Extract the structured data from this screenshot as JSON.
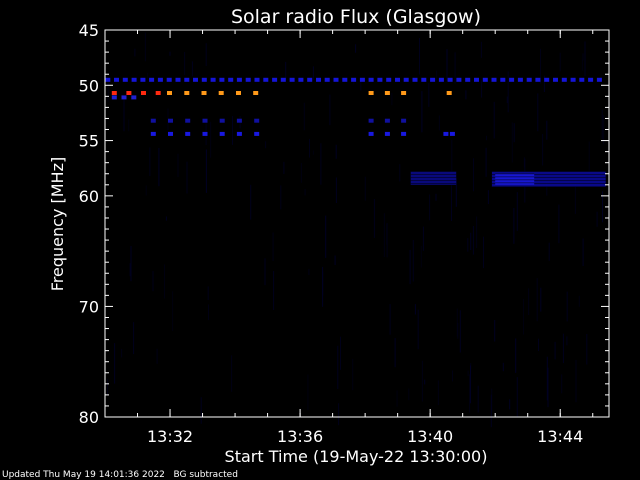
{
  "chart_data": {
    "type": "heatmap",
    "title": "Solar radio Flux (Glasgow)",
    "xlabel": "Start Time (19-May-22 13:30:00)",
    "ylabel": "Frequency [MHz]",
    "x_unit": "minutes after 13:30",
    "xlim": [
      0.0,
      15.5
    ],
    "ylim": [
      45,
      80
    ],
    "y_inverted": true,
    "x_ticks": [
      {
        "value": 2,
        "label": "13:32"
      },
      {
        "value": 6,
        "label": "13:36"
      },
      {
        "value": 10,
        "label": "13:40"
      },
      {
        "value": 14,
        "label": "13:44"
      }
    ],
    "y_ticks": [
      {
        "value": 45,
        "label": "45"
      },
      {
        "value": 50,
        "label": "50"
      },
      {
        "value": 55,
        "label": "55"
      },
      {
        "value": 60,
        "label": "60"
      },
      {
        "value": 70,
        "label": "70"
      },
      {
        "value": 80,
        "label": "80"
      }
    ],
    "colors": {
      "background": "#000000",
      "low": "#0000c8",
      "mid": "#ff2a00",
      "high": "#ff9a1a"
    },
    "features": [
      {
        "kind": "dotted-line",
        "freq": 49.5,
        "t_start": 0.1,
        "t_end": 15.4,
        "spacing": 0.27,
        "intensity": "low",
        "color": "#1414d8"
      },
      {
        "kind": "dotted-line",
        "freq": 50.7,
        "t_start": 0.3,
        "t_end": 1.9,
        "spacing": 0.45,
        "intensity": "mid",
        "color": "#ff2a10"
      },
      {
        "kind": "dotted-line",
        "freq": 50.7,
        "t_start": 2.0,
        "t_end": 4.8,
        "spacing": 0.53,
        "intensity": "high",
        "color": "#ff9a1a"
      },
      {
        "kind": "dotted-line",
        "freq": 50.7,
        "t_start": 8.2,
        "t_end": 9.2,
        "spacing": 0.5,
        "intensity": "high",
        "color": "#ff9a1a"
      },
      {
        "kind": "dotted-line",
        "freq": 50.7,
        "t_start": 10.6,
        "t_end": 10.6,
        "spacing": 1,
        "intensity": "high",
        "color": "#ff9a1a"
      },
      {
        "kind": "dotted-line",
        "freq": 51.1,
        "t_start": 0.3,
        "t_end": 0.9,
        "spacing": 0.3,
        "intensity": "low",
        "color": "#2020d0"
      },
      {
        "kind": "dotted-line",
        "freq": 53.2,
        "t_start": 1.5,
        "t_end": 4.7,
        "spacing": 0.53,
        "intensity": "low",
        "color": "#1010a0"
      },
      {
        "kind": "dotted-line",
        "freq": 53.2,
        "t_start": 8.2,
        "t_end": 9.2,
        "spacing": 0.5,
        "intensity": "low",
        "color": "#1010a0"
      },
      {
        "kind": "dotted-line",
        "freq": 54.4,
        "t_start": 1.5,
        "t_end": 4.7,
        "spacing": 0.53,
        "intensity": "low",
        "color": "#1818e0"
      },
      {
        "kind": "dotted-line",
        "freq": 54.4,
        "t_start": 8.2,
        "t_end": 9.2,
        "spacing": 0.5,
        "intensity": "low",
        "color": "#1818e0"
      },
      {
        "kind": "dotted-line",
        "freq": 54.4,
        "t_start": 10.5,
        "t_end": 10.7,
        "spacing": 0.2,
        "intensity": "low",
        "color": "#1818e0"
      },
      {
        "kind": "patch",
        "t_start": 9.4,
        "t_end": 10.8,
        "f_start": 57.8,
        "f_end": 59.0,
        "intensity": "low",
        "color": "#0a0a90"
      },
      {
        "kind": "patch",
        "t_start": 11.9,
        "t_end": 15.4,
        "f_start": 57.8,
        "f_end": 59.2,
        "intensity": "low",
        "color": "#0a0aa0"
      },
      {
        "kind": "patch",
        "t_start": 12.0,
        "t_end": 13.2,
        "f_start": 58.0,
        "f_end": 59.0,
        "intensity": "low",
        "color": "#1a1ae0"
      }
    ]
  },
  "footer": {
    "updated": "Updated Thu May 19 14:01:36 2022",
    "note": "BG subtracted"
  }
}
